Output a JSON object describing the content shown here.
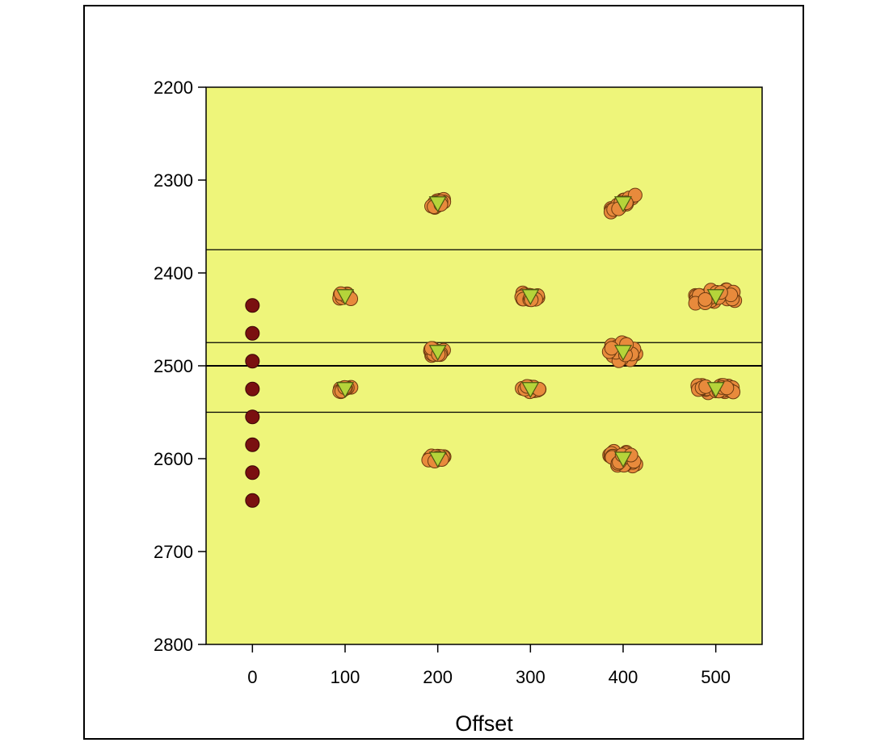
{
  "chart_data": {
    "type": "scatter",
    "title": "",
    "xlabel": "Offset",
    "ylabel": "",
    "xlim": [
      -50,
      550
    ],
    "ylim": [
      2800,
      2200
    ],
    "y_inverted": true,
    "xticks": [
      0,
      100,
      200,
      300,
      400,
      500
    ],
    "yticks": [
      2200,
      2300,
      2400,
      2500,
      2600,
      2700,
      2800
    ],
    "grid": false,
    "legend": "none",
    "colors": {
      "plot_background": "#eef57a",
      "source": "#7a1010",
      "cluster_fill": "#e88a3c",
      "cluster_stroke": "#6b3a10",
      "triangle": "#b5d43a",
      "line": "#000000"
    },
    "horizontal_lines": [
      2375,
      2475,
      2500,
      2550
    ],
    "source_points": {
      "x": 0,
      "y": [
        2435,
        2465,
        2495,
        2525,
        2555,
        2585,
        2615,
        2645
      ]
    },
    "clusters": [
      {
        "x": 100,
        "y": 2425,
        "spread_x": 7,
        "spread_y": 3,
        "n": 12
      },
      {
        "x": 100,
        "y": 2525,
        "spread_x": 7,
        "spread_y": 3,
        "n": 12
      },
      {
        "x": 200,
        "y": 2325,
        "spread_x": 7,
        "spread_y": 7,
        "n": 14,
        "tilt": true
      },
      {
        "x": 200,
        "y": 2485,
        "spread_x": 8,
        "spread_y": 4,
        "n": 14
      },
      {
        "x": 200,
        "y": 2600,
        "spread_x": 10,
        "spread_y": 3,
        "n": 14
      },
      {
        "x": 300,
        "y": 2425,
        "spread_x": 10,
        "spread_y": 4,
        "n": 16
      },
      {
        "x": 300,
        "y": 2525,
        "spread_x": 10,
        "spread_y": 3,
        "n": 14
      },
      {
        "x": 400,
        "y": 2325,
        "spread_x": 14,
        "spread_y": 7,
        "n": 22,
        "tilt": true
      },
      {
        "x": 400,
        "y": 2485,
        "spread_x": 15,
        "spread_y": 10,
        "n": 30
      },
      {
        "x": 400,
        "y": 2600,
        "spread_x": 15,
        "spread_y": 8,
        "n": 28
      },
      {
        "x": 500,
        "y": 2425,
        "spread_x": 22,
        "spread_y": 8,
        "n": 32
      },
      {
        "x": 500,
        "y": 2525,
        "spread_x": 20,
        "spread_y": 4,
        "n": 24
      }
    ]
  }
}
